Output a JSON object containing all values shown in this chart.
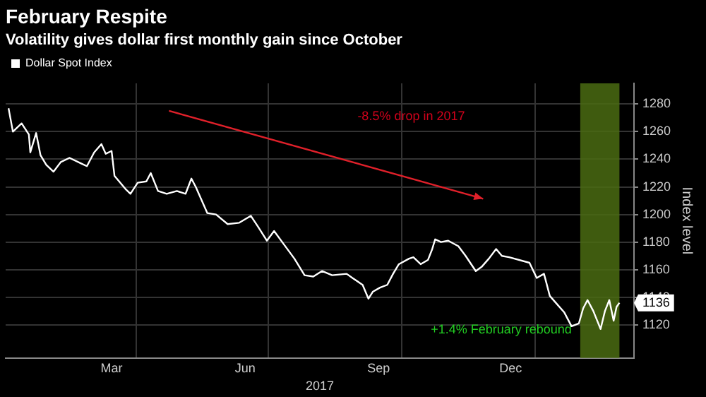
{
  "chart_data": {
    "type": "line",
    "title": "February Respite",
    "subtitle": "Volatility gives dollar first monthly gain since October",
    "xlabel": "2017",
    "ylabel": "Index level",
    "x": [
      "2017-01-03",
      "2017-01-06",
      "2017-01-12",
      "2017-01-17",
      "2017-01-18",
      "2017-01-22",
      "2017-01-25",
      "2017-01-29",
      "2017-02-03",
      "2017-02-08",
      "2017-02-14",
      "2017-02-22",
      "2017-02-26",
      "2017-03-03",
      "2017-03-08",
      "2017-03-11",
      "2017-03-15",
      "2017-03-17",
      "2017-03-25",
      "2017-03-28",
      "2017-04-02",
      "2017-04-08",
      "2017-04-11",
      "2017-04-16",
      "2017-04-22",
      "2017-04-29",
      "2017-05-05",
      "2017-05-09",
      "2017-05-12",
      "2017-05-20",
      "2017-05-26",
      "2017-06-03",
      "2017-06-11",
      "2017-06-19",
      "2017-06-24",
      "2017-06-30",
      "2017-07-05",
      "2017-07-12",
      "2017-07-19",
      "2017-07-26",
      "2017-08-01",
      "2017-08-07",
      "2017-08-14",
      "2017-08-24",
      "2017-08-28",
      "2017-09-04",
      "2017-09-08",
      "2017-09-11",
      "2017-09-16",
      "2017-09-21",
      "2017-09-25",
      "2017-09-29",
      "2017-10-06",
      "2017-10-09",
      "2017-10-14",
      "2017-10-19",
      "2017-10-22",
      "2017-10-24",
      "2017-10-28",
      "2017-11-02",
      "2017-11-09",
      "2017-11-14",
      "2017-11-21",
      "2017-11-25",
      "2017-11-30",
      "2017-12-05",
      "2017-12-09",
      "2017-12-14",
      "2017-12-28",
      "2018-01-02",
      "2018-01-07",
      "2018-01-11",
      "2018-01-16",
      "2018-01-21",
      "2018-01-26",
      "2018-01-31",
      "2018-02-03",
      "2018-02-06",
      "2018-02-10",
      "2018-02-15",
      "2018-02-18",
      "2018-02-21",
      "2018-02-24",
      "2018-02-26",
      "2018-02-28"
    ],
    "series": [
      {
        "name": "Dollar Spot Index",
        "color": "#ffffff",
        "values": [
          1277,
          1260,
          1266,
          1258,
          1245,
          1259,
          1243,
          1236,
          1231,
          1238,
          1241,
          1237,
          1235,
          1245,
          1251,
          1244,
          1246,
          1228,
          1218,
          1215,
          1223,
          1224,
          1230,
          1217,
          1215,
          1217,
          1215,
          1226,
          1220,
          1201,
          1200,
          1193,
          1194,
          1199,
          1191,
          1181,
          1188,
          1178,
          1168,
          1156,
          1155,
          1159,
          1156,
          1157,
          1154,
          1149,
          1139,
          1144,
          1147,
          1149,
          1157,
          1164,
          1168,
          1169,
          1164,
          1167,
          1175,
          1182,
          1180,
          1181,
          1177,
          1170,
          1159,
          1162,
          1168,
          1175,
          1170,
          1169,
          1165,
          1154,
          1157,
          1141,
          1135,
          1129,
          1119,
          1121,
          1132,
          1138,
          1130,
          1117,
          1130,
          1138,
          1123,
          1133,
          1136
        ]
      }
    ],
    "xlim": [
      "2017-01-01",
      "2018-03-10"
    ],
    "xticks": [
      {
        "value": "2017-03-15",
        "label": "Mar"
      },
      {
        "value": "2017-04-01",
        "label": null
      },
      {
        "value": "2017-06-15",
        "label": "Jun"
      },
      {
        "value": "2017-07-01",
        "label": null
      },
      {
        "value": "2017-09-15",
        "label": "Sep"
      },
      {
        "value": "2017-10-01",
        "label": null
      },
      {
        "value": "2017-12-15",
        "label": "Dec"
      },
      {
        "value": "2018-01-01",
        "label": null
      }
    ],
    "ylim": [
      1096,
      1295
    ],
    "yticks": [
      1120,
      1140,
      1160,
      1180,
      1200,
      1220,
      1240,
      1260,
      1280
    ],
    "grid": true,
    "legend": "top left",
    "marker": "none",
    "line_style": "solid",
    "bands": [
      {
        "axis": "x",
        "from": "2018-02-01",
        "to": "2018-02-28",
        "label": "+1.4% February rebound",
        "color": "#4a6b12"
      }
    ],
    "annotations": [
      "-8.5% drop in 2017",
      {
        "text": "1136",
        "x": "2018-02-28",
        "y": 1136
      }
    ]
  }
}
